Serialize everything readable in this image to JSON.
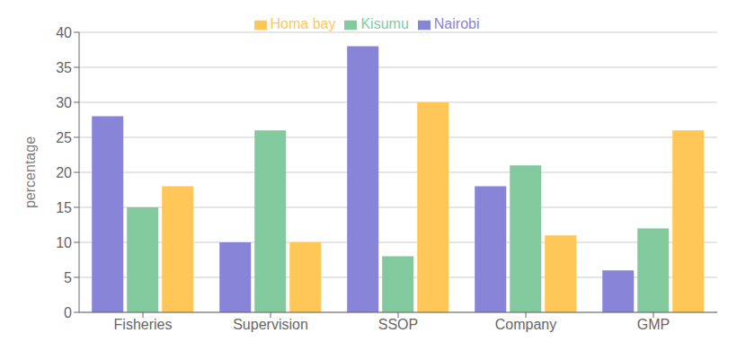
{
  "chart_data": {
    "type": "bar",
    "ylabel": "percentage",
    "categories": [
      "Fisheries",
      "Supervision",
      "SSOP",
      "Company",
      "GMP"
    ],
    "series": [
      {
        "name": "Nairobi",
        "color": "#8884d8",
        "values": [
          28,
          10,
          38,
          18,
          6
        ]
      },
      {
        "name": "Kisumu",
        "color": "#82ca9d",
        "values": [
          15,
          26,
          8,
          21,
          12
        ]
      },
      {
        "name": "Homa bay",
        "color": "#ffc658",
        "values": [
          18,
          10,
          30,
          11,
          26
        ]
      }
    ],
    "ylim": [
      0,
      40
    ],
    "yticks": [
      0,
      5,
      10,
      15,
      20,
      25,
      30,
      35,
      40
    ],
    "grid": true,
    "legend": "upper center"
  }
}
